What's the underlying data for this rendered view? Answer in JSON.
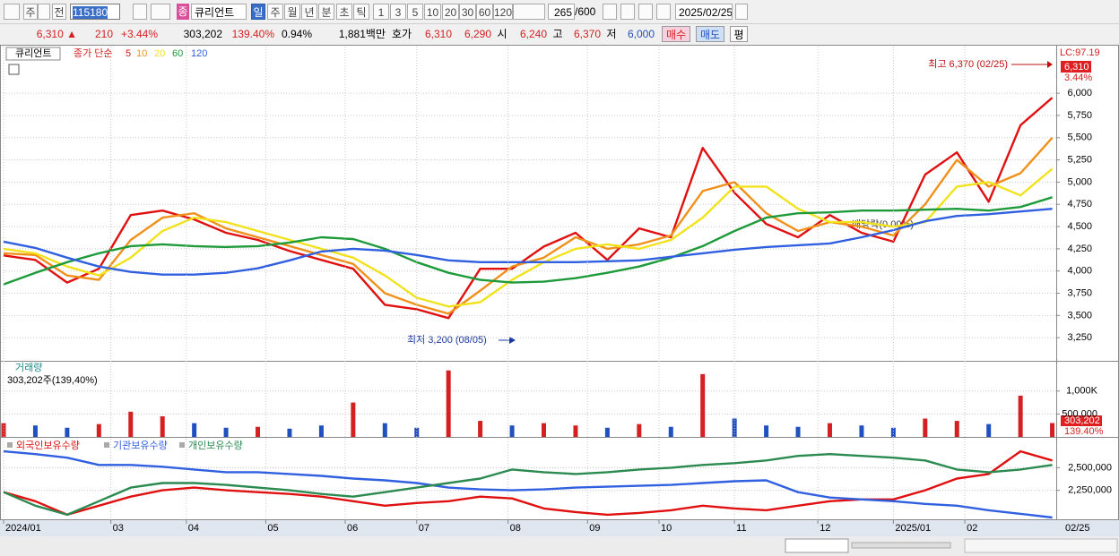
{
  "toolbar": {
    "row1": [
      "주",
      "전",
      "115180",
      "종",
      "큐리언트",
      "일",
      "주",
      "월",
      "년",
      "분",
      "초",
      "틱",
      "1",
      "3",
      "5",
      "10",
      "20",
      "30",
      "60",
      "120",
      "265",
      "/600",
      "2025/02/25"
    ],
    "row2": [
      "6,310 ▲",
      "210",
      "+3.44%",
      "303,202",
      "139.40%",
      "0.94%",
      "1,881백만",
      "호가",
      "6,310",
      "6,290",
      "시",
      "6,240",
      "고",
      "6,370",
      "저",
      "6,000",
      "매수",
      "매도",
      "평"
    ]
  },
  "chart_data": [
    {
      "type": "line",
      "name": "큐리언트",
      "legend_prefix": "종가 단순",
      "high_label": "최고 6,370 (02/25)",
      "low_label": "최저 3,200 (08/05)",
      "event_label": "배당락(0.00%)",
      "lc_label": "LC:97.19",
      "last_label": "6,310",
      "change_label": "3.44%",
      "xlim": [
        0,
        265
      ],
      "ylim": [
        2990,
        6525
      ],
      "grid": true,
      "yticks": [
        {
          "value": 3250,
          "label": "3,250"
        },
        {
          "value": 3500,
          "label": "3,500"
        },
        {
          "value": 3750,
          "label": "3,750"
        },
        {
          "value": 4000,
          "label": "4,000"
        },
        {
          "value": 4250,
          "label": "4,250"
        },
        {
          "value": 4500,
          "label": "4,500"
        },
        {
          "value": 4750,
          "label": "4,750"
        },
        {
          "value": 5000,
          "label": "5,000"
        },
        {
          "value": 5250,
          "label": "5,250"
        },
        {
          "value": 5500,
          "label": "5,500"
        },
        {
          "value": 5750,
          "label": "5,750"
        },
        {
          "value": 6000,
          "label": "6,000"
        }
      ],
      "x": [
        0,
        8,
        16,
        24,
        32,
        40,
        48,
        56,
        64,
        72,
        80,
        88,
        96,
        104,
        112,
        120,
        128,
        136,
        144,
        152,
        160,
        168,
        176,
        184,
        192,
        200,
        208,
        216,
        224,
        232,
        240,
        248,
        256,
        264
      ],
      "series": [
        {
          "name": "5",
          "color": "#e01010",
          "values": [
            4175,
            4125,
            3870,
            4025,
            4630,
            4680,
            4580,
            4430,
            4350,
            4225,
            4125,
            4025,
            3620,
            3570,
            3470,
            4025,
            4025,
            4275,
            4430,
            4125,
            4480,
            4380,
            5385,
            4880,
            4530,
            4380,
            4630,
            4430,
            4330,
            5085,
            5335,
            4780,
            5640,
            5950
          ]
        },
        {
          "name": "10",
          "color": "#f0901a",
          "values": [
            4200,
            4180,
            3950,
            3900,
            4350,
            4600,
            4650,
            4480,
            4380,
            4280,
            4180,
            4080,
            3750,
            3620,
            3520,
            3780,
            4050,
            4150,
            4380,
            4250,
            4300,
            4400,
            4900,
            5000,
            4650,
            4450,
            4550,
            4500,
            4400,
            4750,
            5250,
            4950,
            5100,
            5500
          ]
        },
        {
          "name": "20",
          "color": "#f2e21c",
          "values": [
            4250,
            4200,
            4050,
            3950,
            4150,
            4450,
            4600,
            4550,
            4450,
            4350,
            4250,
            4150,
            3950,
            3700,
            3600,
            3650,
            3900,
            4100,
            4250,
            4300,
            4250,
            4350,
            4600,
            4950,
            4950,
            4700,
            4550,
            4550,
            4500,
            4550,
            4950,
            5000,
            4850,
            5150
          ]
        },
        {
          "name": "60",
          "color": "#1e9a3a",
          "values": [
            3850,
            3980,
            4100,
            4200,
            4280,
            4300,
            4280,
            4270,
            4280,
            4320,
            4380,
            4360,
            4250,
            4100,
            3980,
            3900,
            3870,
            3880,
            3920,
            3980,
            4050,
            4150,
            4280,
            4450,
            4600,
            4650,
            4660,
            4680,
            4680,
            4690,
            4700,
            4680,
            4720,
            4830
          ]
        },
        {
          "name": "120",
          "color": "#3060e0",
          "values": [
            4330,
            4260,
            4150,
            4050,
            3990,
            3960,
            3960,
            3980,
            4030,
            4120,
            4220,
            4250,
            4230,
            4180,
            4120,
            4100,
            4100,
            4100,
            4100,
            4110,
            4120,
            4160,
            4200,
            4240,
            4270,
            4290,
            4310,
            4380,
            4460,
            4560,
            4620,
            4640,
            4670,
            4700
          ]
        }
      ]
    },
    {
      "type": "bar",
      "sublabel": "303,202주(139,40%)",
      "last_label": "303,202",
      "change_label": "139.40%",
      "xlim": [
        0,
        265
      ],
      "ylim": [
        0,
        1640000
      ],
      "grid": true,
      "yticks": [
        {
          "value": 500000,
          "label": "500,000"
        },
        {
          "value": 1000000,
          "label": "1,000K"
        }
      ],
      "x": [
        0,
        8,
        16,
        24,
        32,
        40,
        48,
        56,
        64,
        72,
        80,
        88,
        96,
        104,
        112,
        120,
        128,
        136,
        144,
        152,
        160,
        168,
        176,
        184,
        192,
        200,
        208,
        216,
        224,
        232,
        240,
        248,
        256,
        264
      ],
      "series": [
        {
          "name": "거래량",
          "values": [
            300000,
            250000,
            200000,
            280000,
            550000,
            450000,
            300000,
            200000,
            220000,
            180000,
            250000,
            750000,
            300000,
            200000,
            1450000,
            350000,
            250000,
            300000,
            250000,
            200000,
            280000,
            220000,
            1370000,
            400000,
            250000,
            220000,
            300000,
            250000,
            200000,
            400000,
            350000,
            280000,
            900000,
            303202
          ],
          "colors": [
            "#d42020",
            "#2050c0",
            "#2050c0",
            "#d42020",
            "#d42020",
            "#d42020",
            "#2050c0",
            "#2050c0",
            "#d42020",
            "#2050c0",
            "#2050c0",
            "#d42020",
            "#2050c0",
            "#2050c0",
            "#d42020",
            "#d42020",
            "#2050c0",
            "#d42020",
            "#d42020",
            "#2050c0",
            "#d42020",
            "#2050c0",
            "#d42020",
            "#2050c0",
            "#2050c0",
            "#2050c0",
            "#d42020",
            "#2050c0",
            "#2050c0",
            "#d42020",
            "#d42020",
            "#2050c0",
            "#d42020",
            "#d42020"
          ]
        }
      ]
    },
    {
      "type": "line",
      "last_date": "02/25",
      "xlim": [
        0,
        265
      ],
      "ylim": [
        1930000,
        2810000
      ],
      "grid": true,
      "yticks": [
        {
          "value": 2250000,
          "label": "2,250,000"
        },
        {
          "value": 2500000,
          "label": "2,500,000"
        }
      ],
      "xticks": [
        {
          "value": 0,
          "label": "2024/01"
        },
        {
          "value": 27,
          "label": "03"
        },
        {
          "value": 46,
          "label": "04"
        },
        {
          "value": 66,
          "label": "05"
        },
        {
          "value": 86,
          "label": "06"
        },
        {
          "value": 104,
          "label": "07"
        },
        {
          "value": 127,
          "label": "08"
        },
        {
          "value": 147,
          "label": "09"
        },
        {
          "value": 165,
          "label": "10"
        },
        {
          "value": 184,
          "label": "11"
        },
        {
          "value": 205,
          "label": "12"
        },
        {
          "value": 224,
          "label": "2025/01"
        },
        {
          "value": 242,
          "label": "02"
        }
      ],
      "x": [
        0,
        8,
        16,
        24,
        32,
        40,
        48,
        56,
        64,
        72,
        80,
        88,
        96,
        104,
        112,
        120,
        128,
        136,
        144,
        152,
        160,
        168,
        176,
        184,
        192,
        200,
        208,
        216,
        224,
        232,
        240,
        248,
        256,
        264
      ],
      "series": [
        {
          "name": "외국인보유수량",
          "color": "#e01010",
          "values": [
            2230000,
            2130000,
            1980000,
            2080000,
            2180000,
            2250000,
            2280000,
            2250000,
            2230000,
            2210000,
            2180000,
            2130000,
            2080000,
            2110000,
            2130000,
            2180000,
            2160000,
            2050000,
            2010000,
            1980000,
            2000000,
            2030000,
            2080000,
            2050000,
            2030000,
            2080000,
            2130000,
            2150000,
            2150000,
            2250000,
            2380000,
            2430000,
            2680000,
            2580000
          ]
        },
        {
          "name": "기관보유수량",
          "color": "#3060e0",
          "values": [
            2680000,
            2650000,
            2610000,
            2530000,
            2530000,
            2510000,
            2480000,
            2450000,
            2450000,
            2430000,
            2410000,
            2380000,
            2360000,
            2330000,
            2280000,
            2260000,
            2250000,
            2260000,
            2280000,
            2290000,
            2300000,
            2310000,
            2330000,
            2350000,
            2360000,
            2230000,
            2170000,
            2150000,
            2130000,
            2100000,
            2080000,
            2030000,
            1990000,
            1950000
          ]
        },
        {
          "name": "개인보유수량",
          "color": "#2a8a50",
          "values": [
            2230000,
            2080000,
            1980000,
            2130000,
            2280000,
            2330000,
            2330000,
            2310000,
            2280000,
            2250000,
            2210000,
            2180000,
            2230000,
            2280000,
            2330000,
            2380000,
            2480000,
            2450000,
            2430000,
            2450000,
            2480000,
            2500000,
            2530000,
            2550000,
            2580000,
            2630000,
            2650000,
            2630000,
            2610000,
            2580000,
            2480000,
            2450000,
            2480000,
            2530000
          ]
        }
      ]
    }
  ]
}
